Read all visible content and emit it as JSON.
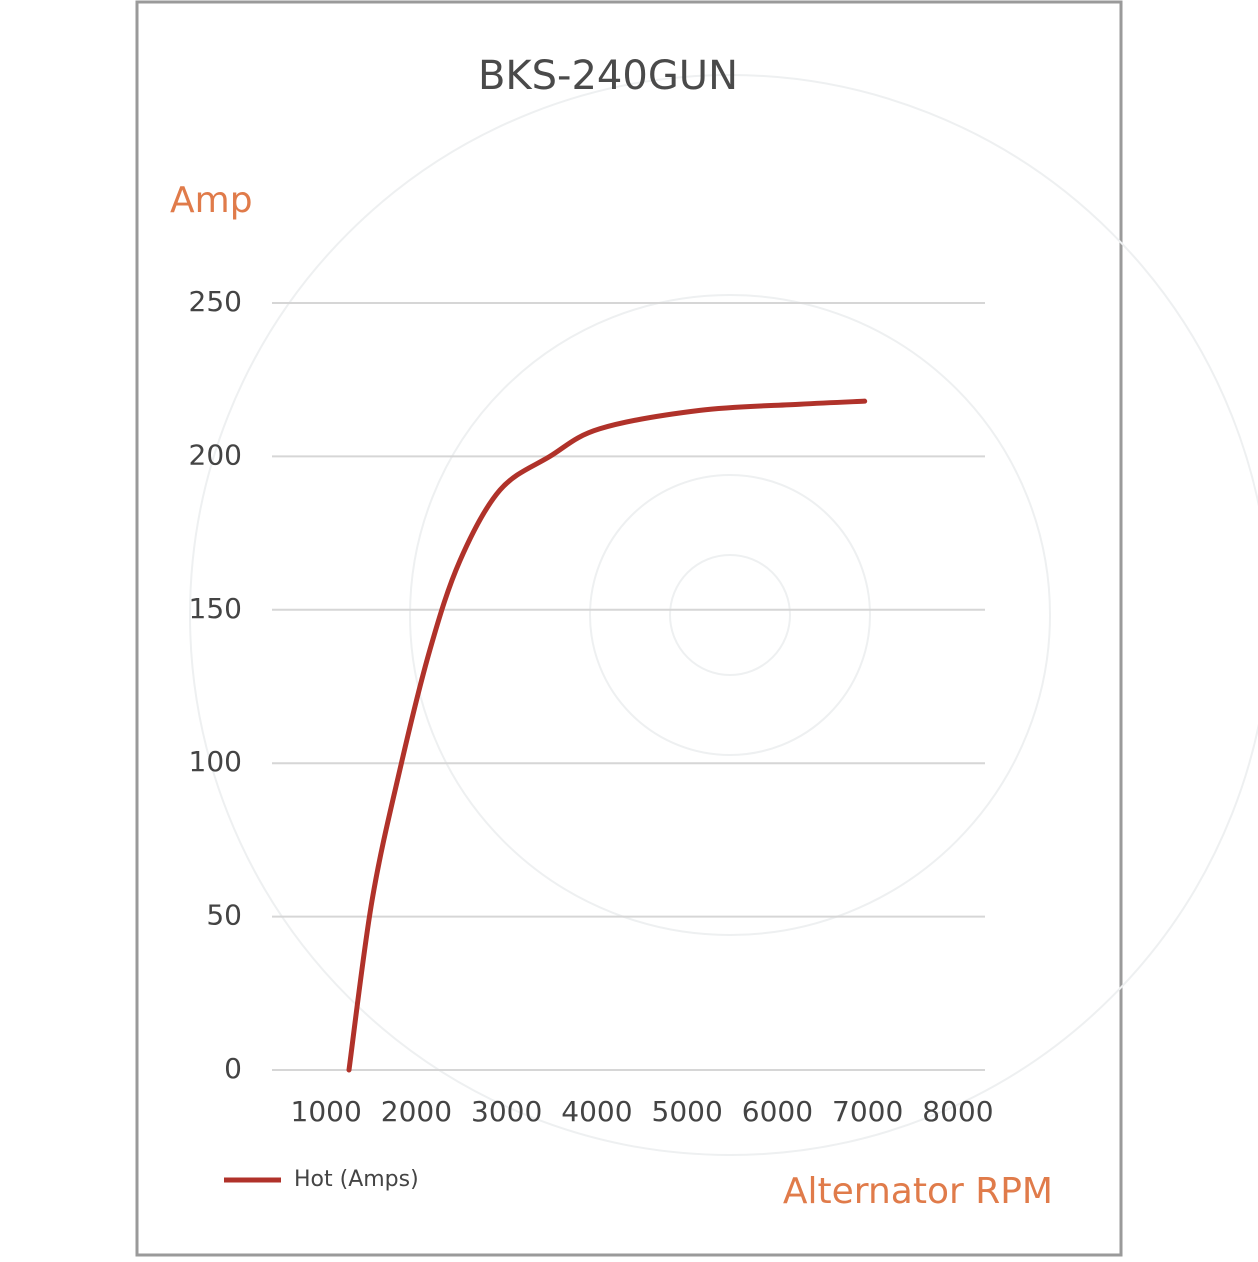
{
  "chart_data": {
    "type": "line",
    "title": "BKS-240GUN",
    "y_label": "Amp",
    "x_label": "Alternator RPM",
    "x": [
      1253,
      1507,
      1818,
      2150,
      2482,
      2925,
      3479,
      4032,
      5140,
      6247,
      6967
    ],
    "series": [
      {
        "name": "Hot (Amps)",
        "color": "#b0322a",
        "values": [
          0,
          55,
          98,
          137,
          166,
          189,
          200,
          209,
          215,
          217,
          218
        ]
      }
    ],
    "xlim": [
      400,
      8300
    ],
    "xticks": [
      1000,
      2000,
      3000,
      4000,
      5000,
      6000,
      7000,
      8000
    ],
    "ylim": [
      0,
      250
    ],
    "yticks": [
      0,
      50,
      100,
      150,
      200,
      250
    ],
    "grid": true
  }
}
